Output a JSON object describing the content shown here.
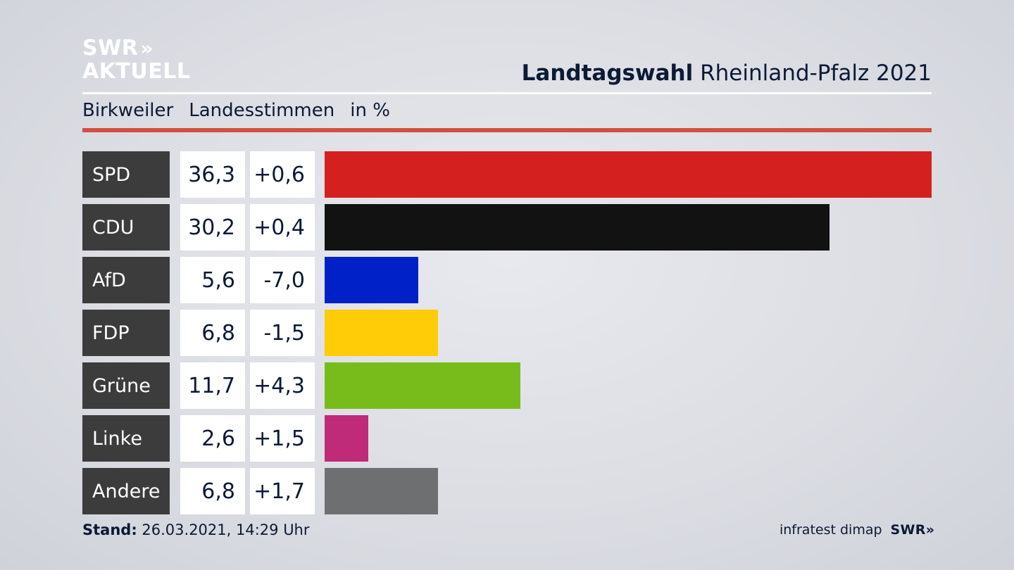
{
  "logo": {
    "line1": "SWR",
    "line2": "AKTUELL",
    "chevrons": "»"
  },
  "header": {
    "title_bold": "Landtagswahl",
    "title_regular": "Rheinland-Pfalz 2021"
  },
  "subhead": {
    "place": "Birkweiler",
    "type": "Landesstimmen",
    "unit": "in %"
  },
  "chart_data": {
    "type": "bar",
    "orientation": "horizontal",
    "categories": [
      "SPD",
      "CDU",
      "AfD",
      "FDP",
      "Grüne",
      "Linke",
      "Andere"
    ],
    "values": [
      36.3,
      30.2,
      5.6,
      6.8,
      11.7,
      2.6,
      6.8
    ],
    "value_labels": [
      "36,3",
      "30,2",
      "5,6",
      "6,8",
      "11,7",
      "2,6",
      "6,8"
    ],
    "change_labels": [
      "+0,6",
      "+0,4",
      "-7,0",
      "-1,5",
      "+4,3",
      "+1,5",
      "+1,7"
    ],
    "changes": [
      0.6,
      0.4,
      -7.0,
      -1.5,
      4.3,
      1.5,
      1.7
    ],
    "colors": [
      "#d52020",
      "#121212",
      "#0021c8",
      "#ffcc07",
      "#78bc1c",
      "#bf2b78",
      "#6e6f71"
    ],
    "xlim": [
      0,
      36.3
    ]
  },
  "footer": {
    "stand_label": "Stand:",
    "stand_value": "26.03.2021, 14:29 Uhr",
    "source": "infratest dimap",
    "brand": "SWR",
    "brand_chevrons": "»"
  }
}
